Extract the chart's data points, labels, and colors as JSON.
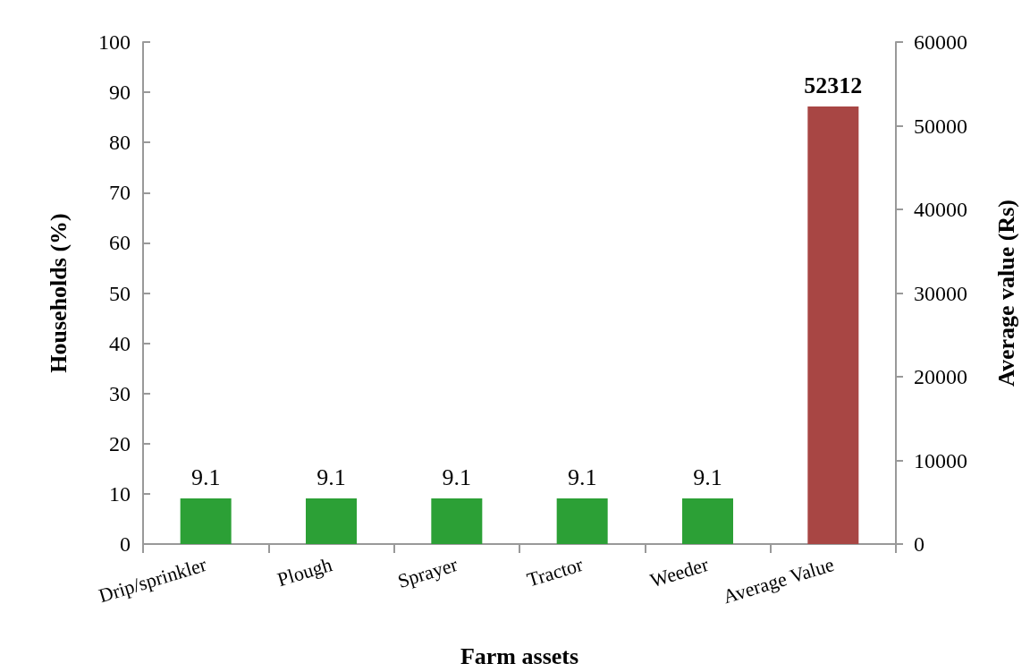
{
  "chart_data": {
    "type": "bar",
    "xlabel": "Farm assets",
    "ylabel": "Households (%)",
    "y2label": "Average value (Rs)",
    "categories": [
      "Drip/sprinkler",
      "Plough",
      "Sprayer",
      "Tractor",
      "Weeder",
      "Average Value"
    ],
    "series": [
      {
        "color": "#2ca036",
        "values": [
          9.1,
          9.1,
          9.1,
          9.1,
          9.1,
          null
        ]
      },
      {
        "color": "#a84644",
        "axis": "y2",
        "values": [
          null,
          null,
          null,
          null,
          null,
          52312
        ]
      }
    ],
    "ylim": [
      0,
      100
    ],
    "yticks": [
      0,
      10,
      20,
      30,
      40,
      50,
      60,
      70,
      80,
      90,
      100
    ],
    "y2lim": [
      0,
      60000
    ],
    "y2ticks": [
      0,
      10000,
      20000,
      30000,
      40000,
      50000,
      60000
    ],
    "data_labels": true,
    "grid": false
  }
}
